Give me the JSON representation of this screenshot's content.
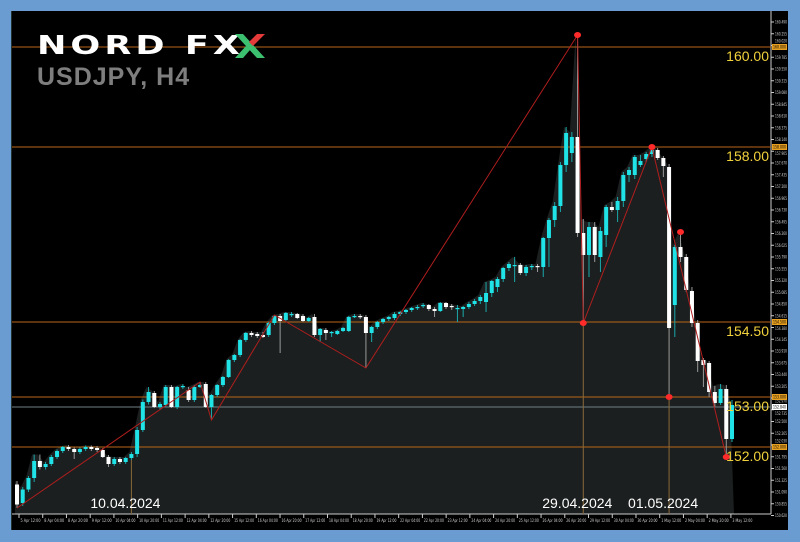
{
  "header": {
    "logo_text": "NORD FX",
    "symbol_timeframe": "USDJPY, H4"
  },
  "colors": {
    "bull": "#1fe3e6",
    "bear": "#ffffff",
    "level_line": "#b8661a",
    "level_label": "#f2d23c",
    "zigzag": "#b01e1e",
    "zigzag_point": "#ff2a2a",
    "background": "#000000",
    "frame": "#6b9cd1",
    "area": "#1c1f1f"
  },
  "chart_data": {
    "type": "candlestick",
    "symbol": "USDJPY",
    "timeframe": "H4",
    "ylim": [
      150.575,
      160.49
    ],
    "y_ticks": [
      "160.490",
      "160.255",
      "160.020",
      "159.785",
      "159.550",
      "159.315",
      "159.080",
      "158.845",
      "158.610",
      "158.375",
      "158.140",
      "157.905",
      "157.670",
      "157.435",
      "157.200",
      "156.965",
      "156.730",
      "156.495",
      "156.260",
      "156.025",
      "155.790",
      "155.555",
      "155.320",
      "155.085",
      "154.850",
      "154.615",
      "154.380",
      "154.145",
      "153.910",
      "153.675",
      "153.440",
      "153.205",
      "152.970",
      "152.735",
      "152.500",
      "152.265",
      "152.030",
      "151.795",
      "151.560",
      "151.325",
      "151.090",
      "150.855",
      "150.620"
    ],
    "x_ticks": [
      "5 Apr 12:00",
      "8 Apr 04:00",
      "8 Apr 20:00",
      "9 Apr 12:00",
      "10 Apr 04:00",
      "10 Apr 20:00",
      "11 Apr 12:00",
      "12 Apr 04:00",
      "12 Apr 20:00",
      "15 Apr 12:00",
      "16 Apr 04:00",
      "16 Apr 20:00",
      "17 Apr 12:00",
      "18 Apr 04:00",
      "18 Apr 20:00",
      "19 Apr 12:00",
      "22 Apr 04:00",
      "22 Apr 20:00",
      "23 Apr 12:00",
      "24 Apr 04:00",
      "24 Apr 20:00",
      "25 Apr 12:00",
      "26 Apr 04:00",
      "26 Apr 20:00",
      "29 Apr 12:00",
      "30 Apr 04:00",
      "30 Apr 20:00",
      "1 May 12:00",
      "2 May 04:00",
      "2 May 20:00",
      "3 May 12:00"
    ],
    "candles_ohlc": [
      [
        151.25,
        151.32,
        150.78,
        150.85
      ],
      [
        150.88,
        151.2,
        150.82,
        151.15
      ],
      [
        151.15,
        151.42,
        151.1,
        151.38
      ],
      [
        151.38,
        151.85,
        151.3,
        151.72
      ],
      [
        151.72,
        151.85,
        151.55,
        151.6
      ],
      [
        151.6,
        151.7,
        151.55,
        151.66
      ],
      [
        151.66,
        151.84,
        151.62,
        151.8
      ],
      [
        151.8,
        151.95,
        151.76,
        151.92
      ],
      [
        151.92,
        152.02,
        151.88,
        152.0
      ],
      [
        152.0,
        152.04,
        151.92,
        151.96
      ],
      [
        151.96,
        151.99,
        151.76,
        151.9
      ],
      [
        151.9,
        151.99,
        151.86,
        151.96
      ],
      [
        151.96,
        152.03,
        151.92,
        152.0
      ],
      [
        152.0,
        152.03,
        151.92,
        151.96
      ],
      [
        151.98,
        152.02,
        151.9,
        151.94
      ],
      [
        151.94,
        151.98,
        151.78,
        151.8
      ],
      [
        151.8,
        151.84,
        151.6,
        151.66
      ],
      [
        151.66,
        151.8,
        151.62,
        151.76
      ],
      [
        151.76,
        151.8,
        151.66,
        151.7
      ],
      [
        151.7,
        151.8,
        151.66,
        151.78
      ],
      [
        151.78,
        151.9,
        151.74,
        151.86
      ],
      [
        151.86,
        152.4,
        151.8,
        152.34
      ],
      [
        152.34,
        152.95,
        152.3,
        152.9
      ],
      [
        152.9,
        153.2,
        152.85,
        153.1
      ],
      [
        153.08,
        153.12,
        152.78,
        152.8
      ],
      [
        152.8,
        152.9,
        152.74,
        152.86
      ],
      [
        152.84,
        153.24,
        152.8,
        153.2
      ],
      [
        153.2,
        153.24,
        152.78,
        152.8
      ],
      [
        152.8,
        153.22,
        152.76,
        153.2
      ],
      [
        153.2,
        153.26,
        153.16,
        153.22
      ],
      [
        153.14,
        153.2,
        152.9,
        152.94
      ],
      [
        152.94,
        153.24,
        152.9,
        153.2
      ],
      [
        153.2,
        153.3,
        153.18,
        153.24
      ],
      [
        153.26,
        153.3,
        152.78,
        152.8
      ],
      [
        152.8,
        153.06,
        152.54,
        153.04
      ],
      [
        153.04,
        153.26,
        153.0,
        153.24
      ],
      [
        153.24,
        153.42,
        153.2,
        153.4
      ],
      [
        153.4,
        153.76,
        153.38,
        153.74
      ],
      [
        153.74,
        153.86,
        153.7,
        153.84
      ],
      [
        153.84,
        154.16,
        153.8,
        154.14
      ],
      [
        154.14,
        154.3,
        154.1,
        154.28
      ],
      [
        154.28,
        154.32,
        154.2,
        154.24
      ],
      [
        154.26,
        154.3,
        154.18,
        154.22
      ],
      [
        154.24,
        154.3,
        154.18,
        154.2
      ],
      [
        154.24,
        154.5,
        154.2,
        154.48
      ],
      [
        154.48,
        154.64,
        154.44,
        154.62
      ],
      [
        154.62,
        154.66,
        153.88,
        154.52
      ],
      [
        154.54,
        154.7,
        154.5,
        154.68
      ],
      [
        154.64,
        154.7,
        154.6,
        154.66
      ],
      [
        154.66,
        154.68,
        154.56,
        154.58
      ],
      [
        154.62,
        154.66,
        154.5,
        154.52
      ],
      [
        154.52,
        154.6,
        154.5,
        154.58
      ],
      [
        154.6,
        154.66,
        154.2,
        154.24
      ],
      [
        154.24,
        154.38,
        154.1,
        154.36
      ],
      [
        154.34,
        154.38,
        154.14,
        154.28
      ],
      [
        154.28,
        154.32,
        154.2,
        154.3
      ],
      [
        154.26,
        154.34,
        154.24,
        154.32
      ],
      [
        154.32,
        154.4,
        154.3,
        154.38
      ],
      [
        154.32,
        154.62,
        154.3,
        154.6
      ],
      [
        154.6,
        154.66,
        154.58,
        154.62
      ],
      [
        154.62,
        154.66,
        154.56,
        154.6
      ],
      [
        154.6,
        154.64,
        153.58,
        154.28
      ],
      [
        154.28,
        154.42,
        154.1,
        154.4
      ],
      [
        154.4,
        154.52,
        154.36,
        154.5
      ],
      [
        154.5,
        154.58,
        154.46,
        154.56
      ],
      [
        154.56,
        154.62,
        154.52,
        154.6
      ],
      [
        154.58,
        154.7,
        154.54,
        154.66
      ],
      [
        154.66,
        154.72,
        154.62,
        154.7
      ],
      [
        154.7,
        154.76,
        154.66,
        154.74
      ],
      [
        154.74,
        154.8,
        154.7,
        154.78
      ],
      [
        154.78,
        154.84,
        154.74,
        154.8
      ],
      [
        154.82,
        154.88,
        154.78,
        154.84
      ],
      [
        154.84,
        154.86,
        154.72,
        154.76
      ],
      [
        154.76,
        154.8,
        154.6,
        154.72
      ],
      [
        154.72,
        154.9,
        154.7,
        154.88
      ],
      [
        154.88,
        154.9,
        154.76,
        154.8
      ],
      [
        154.82,
        154.86,
        154.74,
        154.8
      ],
      [
        154.78,
        154.84,
        154.5,
        154.78
      ],
      [
        154.76,
        154.82,
        154.6,
        154.8
      ],
      [
        154.8,
        154.9,
        154.76,
        154.86
      ],
      [
        154.86,
        154.96,
        154.82,
        154.92
      ],
      [
        154.92,
        155.04,
        154.86,
        155.0
      ],
      [
        154.9,
        155.3,
        154.7,
        155.08
      ],
      [
        155.08,
        155.34,
        155.0,
        155.32
      ],
      [
        155.2,
        155.4,
        155.1,
        155.36
      ],
      [
        155.36,
        155.6,
        155.3,
        155.58
      ],
      [
        155.58,
        155.7,
        155.52,
        155.66
      ],
      [
        155.64,
        155.8,
        155.3,
        155.64
      ],
      [
        155.64,
        155.68,
        155.44,
        155.48
      ],
      [
        155.48,
        155.64,
        155.42,
        155.6
      ],
      [
        155.6,
        155.66,
        155.54,
        155.62
      ],
      [
        155.62,
        155.66,
        155.5,
        155.6
      ],
      [
        155.6,
        156.2,
        155.4,
        156.18
      ],
      [
        156.18,
        156.58,
        155.6,
        156.54
      ],
      [
        156.54,
        156.9,
        156.4,
        156.82
      ],
      [
        156.82,
        157.7,
        156.7,
        157.64
      ],
      [
        157.64,
        158.4,
        157.5,
        158.28
      ],
      [
        157.88,
        158.3,
        157.7,
        158.2
      ],
      [
        158.2,
        160.24,
        156.2,
        156.28
      ],
      [
        156.28,
        156.56,
        154.48,
        155.84
      ],
      [
        155.84,
        156.5,
        155.4,
        156.4
      ],
      [
        156.4,
        156.5,
        155.7,
        155.84
      ],
      [
        155.8,
        156.4,
        155.5,
        156.32
      ],
      [
        156.24,
        156.84,
        156.0,
        156.8
      ],
      [
        156.8,
        156.9,
        156.7,
        156.74
      ],
      [
        156.74,
        157.0,
        156.5,
        156.92
      ],
      [
        156.92,
        157.5,
        156.8,
        157.44
      ],
      [
        157.44,
        157.6,
        157.3,
        157.54
      ],
      [
        157.44,
        157.84,
        157.36,
        157.8
      ],
      [
        157.64,
        157.84,
        157.6,
        157.72
      ],
      [
        157.76,
        157.9,
        157.7,
        157.86
      ],
      [
        157.86,
        158.0,
        157.8,
        157.94
      ],
      [
        157.94,
        157.98,
        157.74,
        157.78
      ],
      [
        157.78,
        157.82,
        157.4,
        157.62
      ],
      [
        157.6,
        157.66,
        153.0,
        154.38
      ],
      [
        154.84,
        156.04,
        154.2,
        156.0
      ],
      [
        156.0,
        156.3,
        155.7,
        155.8
      ],
      [
        155.8,
        155.86,
        155.1,
        155.14
      ],
      [
        155.12,
        155.2,
        154.4,
        154.48
      ],
      [
        154.48,
        154.54,
        153.5,
        153.72
      ],
      [
        153.74,
        153.78,
        153.2,
        153.64
      ],
      [
        153.68,
        153.72,
        153.0,
        153.1
      ],
      [
        153.1,
        153.22,
        152.8,
        152.88
      ],
      [
        152.88,
        153.26,
        152.84,
        153.16
      ],
      [
        153.16,
        153.24,
        151.8,
        152.16
      ],
      [
        152.16,
        152.94,
        152.1,
        152.84
      ]
    ],
    "levels": [
      {
        "price": 160.0,
        "label": "160.00",
        "axis_label": "160.000"
      },
      {
        "price": 158.0,
        "label": "158.00",
        "axis_label": "158.000"
      },
      {
        "price": 154.5,
        "label": "154.50",
        "axis_label": "154.500"
      },
      {
        "price": 153.0,
        "label": "153.00",
        "axis_label": "153.000"
      },
      {
        "price": 152.0,
        "label": "152.00",
        "axis_label": "152.000"
      }
    ],
    "current_price": {
      "price": 152.84,
      "axis_label": "152.840"
    },
    "zigzag": [
      [
        0,
        150.78
      ],
      [
        32,
        153.3
      ],
      [
        34,
        152.54
      ],
      [
        45,
        154.64
      ],
      [
        61,
        153.58
      ],
      [
        98,
        160.24
      ],
      [
        99,
        154.48
      ],
      [
        111,
        158.0
      ],
      [
        124,
        151.8
      ]
    ],
    "zigzag_points": [
      [
        98,
        160.24
      ],
      [
        99,
        154.48
      ],
      [
        111,
        158.0
      ],
      [
        114,
        153.0
      ],
      [
        116,
        156.3
      ],
      [
        124,
        151.8
      ]
    ],
    "date_markers": [
      {
        "candle": 20,
        "label": "10.04.2024"
      },
      {
        "candle": 99,
        "label": "29.04.2024"
      },
      {
        "candle": 114,
        "label": "01.05.2024"
      }
    ]
  }
}
